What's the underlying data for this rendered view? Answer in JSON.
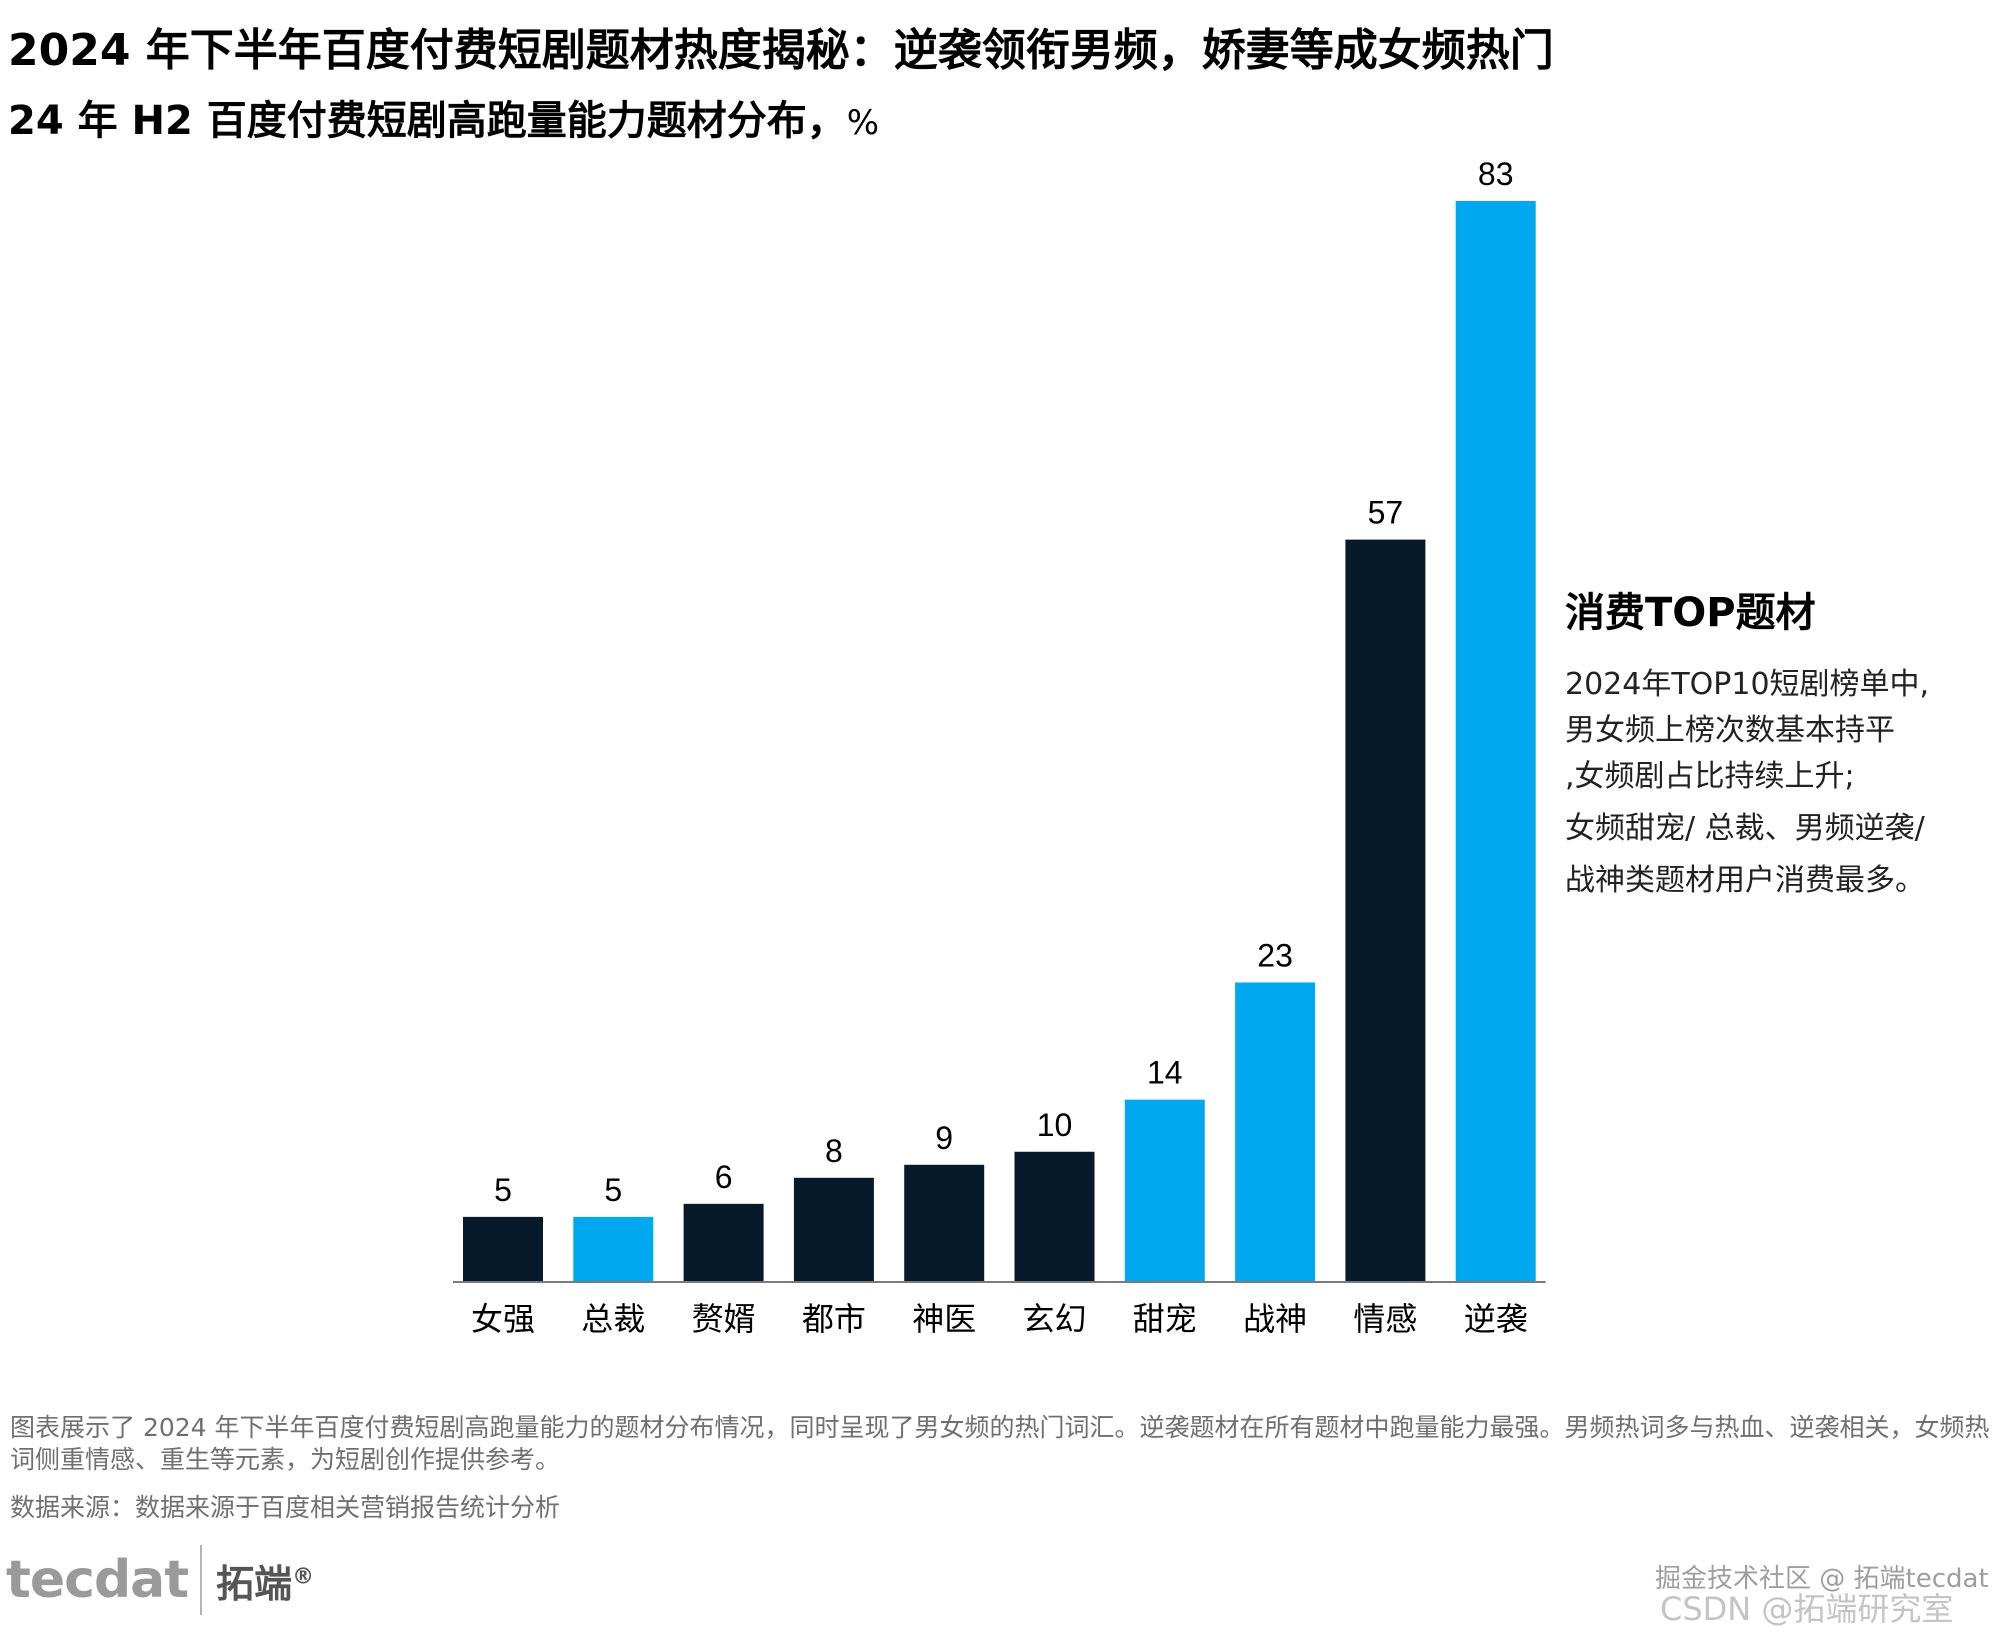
{
  "title": "2024 年下半年百度付费短剧题材热度揭秘：逆袭领衔男频，娇妻等成女频热门",
  "subtitle": "24 年 H2 百度付费短剧高跑量能力题材分布，",
  "subtitle_unit": "%",
  "chart_data": {
    "type": "bar",
    "title": "24 年 H2 百度付费短剧高跑量能力题材分布，%",
    "xlabel": "",
    "ylabel": "",
    "categories": [
      "女强",
      "总裁",
      "赘婿",
      "都市",
      "神医",
      "玄幻",
      "甜宠",
      "战神",
      "情感",
      "逆袭"
    ],
    "values": [
      5,
      5,
      6,
      8,
      9,
      10,
      14,
      23,
      57,
      83
    ],
    "bar_colors": [
      "#061a2b",
      "#00a8f0",
      "#061a2b",
      "#061a2b",
      "#061a2b",
      "#061a2b",
      "#00a8f0",
      "#00a8f0",
      "#061a2b",
      "#00a8f0"
    ],
    "ylim": [
      0,
      83
    ],
    "grid": false,
    "data_labels": true
  },
  "side_panel": {
    "heading": "消费TOP题材",
    "lines": [
      "2024年TOP10短剧榜单中,",
      "男女频上榜次数基本持平",
      ",女频剧占比持续上升;",
      "女频甜宠/ 总裁、男频逆袭/",
      "战神类题材用户消费最多。"
    ]
  },
  "footnote": "图表展示了 2024 年下半年百度付费短剧高跑量能力的题材分布情况，同时呈现了男女频的热门词汇。逆袭题材在所有题材中跑量能力最强。男频热词多与热血、逆袭相关，女频热词侧重情感、重生等元素，为短剧创作提供参考。",
  "source": "数据来源：数据来源于百度相关营销报告统计分析",
  "logo": {
    "brand": "tecdat",
    "cn": "拓端",
    "mark": "®"
  },
  "watermark": {
    "line1": "掘金技术社区 @ 拓端tecdat",
    "line2": "CSDN @拓端研究室"
  },
  "colors": {
    "dark": "#061a2b",
    "accent": "#00a8f0",
    "axis": "#7a7a7a"
  }
}
